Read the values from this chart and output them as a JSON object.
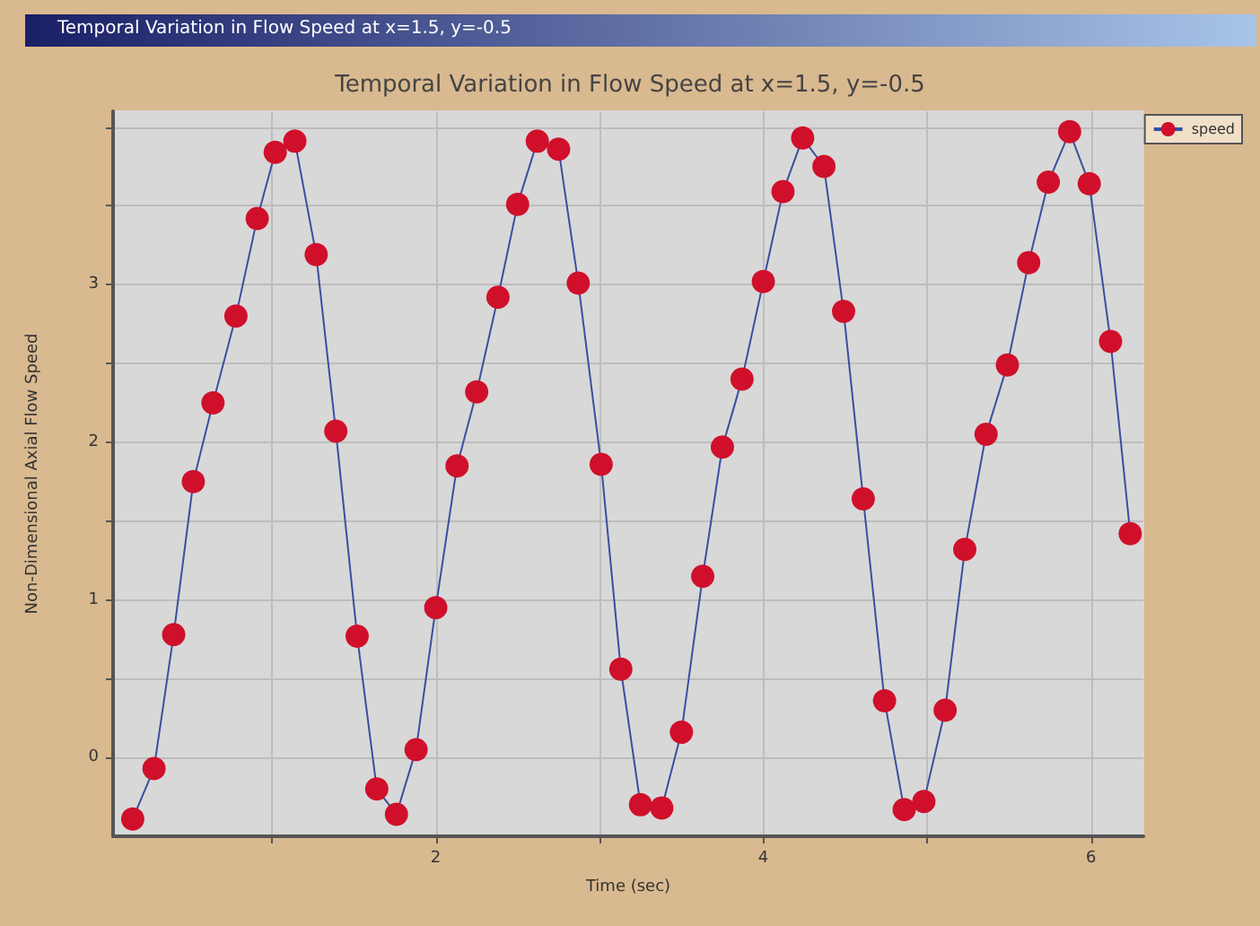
{
  "chart_data": {
    "type": "line",
    "title": "Temporal Variation in Flow Speed at x=1.5, y=-0.5",
    "annotations": [
      "Temporal Variation in Flow Speed at x=1.5, y=-0.5"
    ],
    "xlabel": "Time (sec)",
    "ylabel": "Non-Dimensional Axial Flow Speed",
    "x": [
      0.15,
      0.28,
      0.4,
      0.52,
      0.64,
      0.78,
      0.91,
      1.02,
      1.14,
      1.27,
      1.39,
      1.52,
      1.64,
      1.76,
      1.88,
      2.0,
      2.13,
      2.25,
      2.38,
      2.5,
      2.62,
      2.75,
      2.87,
      3.01,
      3.13,
      3.25,
      3.38,
      3.5,
      3.63,
      3.75,
      3.87,
      4.0,
      4.12,
      4.24,
      4.37,
      4.49,
      4.61,
      4.74,
      4.86,
      4.98,
      5.11,
      5.23,
      5.36,
      5.49,
      5.62,
      5.74,
      5.87,
      5.99,
      6.12,
      6.24
    ],
    "series": [
      {
        "name": "speed",
        "color": "#d0102a",
        "values": [
          -0.39,
          -0.07,
          0.78,
          1.75,
          2.25,
          2.8,
          3.42,
          3.84,
          3.91,
          3.19,
          2.07,
          0.77,
          -0.2,
          -0.36,
          0.05,
          0.95,
          1.85,
          2.32,
          2.92,
          3.51,
          3.91,
          3.86,
          3.01,
          1.86,
          0.56,
          -0.3,
          -0.32,
          0.16,
          1.15,
          1.97,
          2.4,
          3.02,
          3.59,
          3.93,
          3.75,
          2.83,
          1.64,
          0.36,
          -0.33,
          -0.28,
          0.3,
          1.32,
          2.05,
          2.49,
          3.14,
          3.65,
          3.97,
          3.64,
          2.64,
          1.42
        ]
      }
    ],
    "xlim": [
      0.03,
      6.32
    ],
    "xticks": [
      {
        "value": 1,
        "label": null
      },
      2,
      {
        "value": 3,
        "label": null
      },
      4,
      {
        "value": 5,
        "label": null
      },
      6
    ],
    "ylim": [
      -0.5,
      4.1
    ],
    "yticks": [
      0,
      {
        "value": 0.5,
        "label": null
      },
      1,
      {
        "value": 1.5,
        "label": null
      },
      2,
      {
        "value": 2.5,
        "label": null
      },
      3,
      {
        "value": 3.5,
        "label": null
      },
      {
        "value": 4,
        "label": null
      }
    ],
    "grid": true,
    "legend": "top right",
    "marker": "circle",
    "line_style": "solid"
  }
}
